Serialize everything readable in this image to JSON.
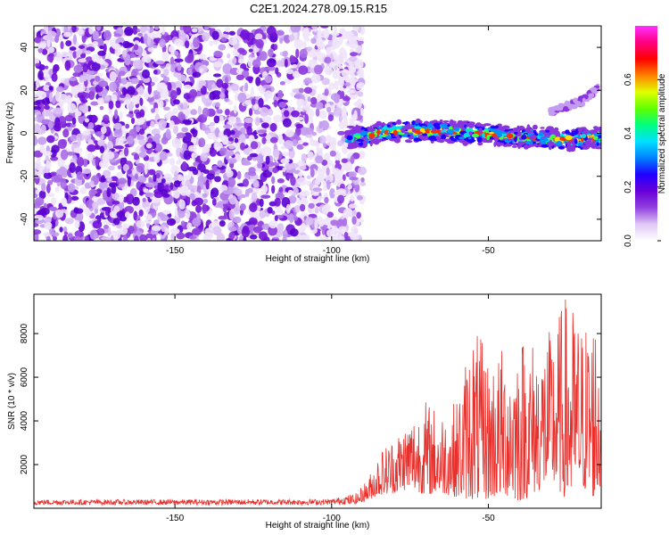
{
  "title": "C2E1.2024.278.09.15.R15",
  "chart_data": [
    {
      "type": "heatmap",
      "xlabel": "Height of straight line (km)",
      "ylabel": "Frequency (Hz)",
      "xlim": [
        -195,
        -14
      ],
      "ylim": [
        -50,
        50
      ],
      "xticks": [
        -150,
        -100,
        -50
      ],
      "yticks": [
        -40,
        -20,
        0,
        20,
        40
      ],
      "colorbar": {
        "label": "Normalized spectral amplitude",
        "range": [
          0,
          0.8
        ],
        "ticks": [
          "0.0",
          "0.2",
          "0.4",
          "0.6"
        ],
        "colors": [
          "#ffffff",
          "#e0c8f5",
          "#9040e0",
          "#6a00d8",
          "#2000ff",
          "#0080ff",
          "#00e0ff",
          "#00ff80",
          "#60ff00",
          "#e0ff00",
          "#ff8000",
          "#ff0000",
          "#ff0080",
          "#ff30ff"
        ]
      },
      "signal_trace": {
        "description_x": [
          -92,
          -85,
          -75,
          -65,
          -55,
          -45,
          -35,
          -25,
          -15
        ],
        "center_hz": [
          -2,
          0,
          1,
          1,
          0,
          -1,
          -2,
          -3,
          -2
        ],
        "high_freq_branch": {
          "x": [
            -30,
            -20,
            -15
          ],
          "center_hz": [
            10,
            15,
            21
          ]
        }
      }
    },
    {
      "type": "line",
      "xlabel": "Height of straight line (km)",
      "ylabel": "SNR (10 * v/v)",
      "xlim": [
        -195,
        -14
      ],
      "ylim": [
        0,
        9800
      ],
      "xticks": [
        -150,
        -100,
        -50
      ],
      "yticks": [
        2000,
        4000,
        6000,
        8000
      ],
      "series": [
        {
          "color": "#e8302c",
          "envelope_x": [
            -195,
            -150,
            -100,
            -92,
            -88,
            -85,
            -80,
            -75,
            -70,
            -65,
            -60,
            -55,
            -50,
            -45,
            -40,
            -35,
            -30,
            -25,
            -20,
            -15,
            -14
          ],
          "envelope_peak": [
            400,
            400,
            420,
            700,
            1500,
            2600,
            3400,
            4300,
            5000,
            4500,
            5000,
            8600,
            7000,
            7500,
            8200,
            7800,
            8200,
            9900,
            8500,
            9500,
            9400
          ],
          "envelope_base": [
            150,
            150,
            150,
            200,
            400,
            600,
            700,
            900,
            600,
            700,
            500,
            400,
            400,
            600,
            300,
            700,
            1100,
            400,
            900,
            300,
            1200
          ]
        }
      ]
    }
  ]
}
